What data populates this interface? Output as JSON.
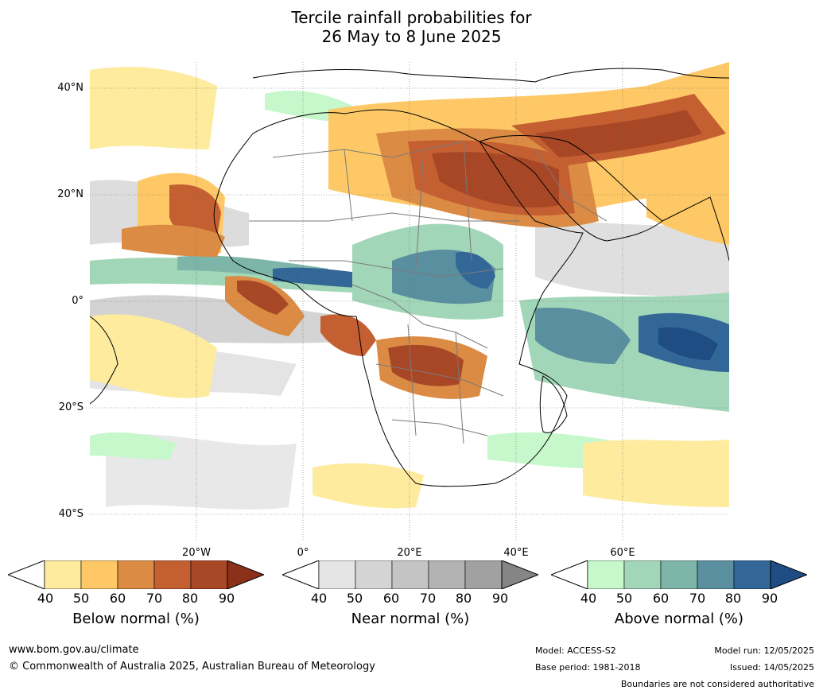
{
  "title": {
    "line1": "Tercile rainfall probabilities for",
    "line2": "26 May to 8 June 2025"
  },
  "map": {
    "lat_labels": [
      "40°N",
      "20°N",
      "0°",
      "20°S",
      "40°S"
    ],
    "lon_labels": [
      "20°W",
      "0°",
      "20°E",
      "40°E",
      "60°E"
    ],
    "gridlines": true
  },
  "colorbars": [
    {
      "name": "below",
      "label": "Below normal (%)",
      "ticks": [
        "40",
        "50",
        "60",
        "70",
        "80",
        "90"
      ],
      "colors": [
        "#ffffff",
        "#feeb9e",
        "#fdc865",
        "#db8b44",
        "#c45f32",
        "#a84726",
        "#8b3019"
      ]
    },
    {
      "name": "near",
      "label": "Near normal (%)",
      "ticks": [
        "40",
        "50",
        "60",
        "70",
        "80",
        "90"
      ],
      "colors": [
        "#ffffff",
        "#e5e5e5",
        "#d4d4d4",
        "#c4c4c4",
        "#b3b3b3",
        "#a1a1a1",
        "#858585"
      ]
    },
    {
      "name": "above",
      "label": "Above normal (%)",
      "ticks": [
        "40",
        "50",
        "60",
        "70",
        "80",
        "90"
      ],
      "colors": [
        "#ffffff",
        "#c6f8cc",
        "#a2d6b8",
        "#7db5a8",
        "#5a8fa0",
        "#326797",
        "#1e4c83"
      ]
    }
  ],
  "footer": {
    "url": "www.bom.gov.au/climate",
    "copyright": "© Commonwealth of Australia 2025, Australian Bureau of Meteorology",
    "model": "Model: ACCESS-S2",
    "base_period": "Base period: 1981-2018",
    "model_run": "Model run: 12/05/2025",
    "issued": "Issued: 14/05/2025",
    "disclaimer": "Boundaries are not considered authoritative"
  }
}
